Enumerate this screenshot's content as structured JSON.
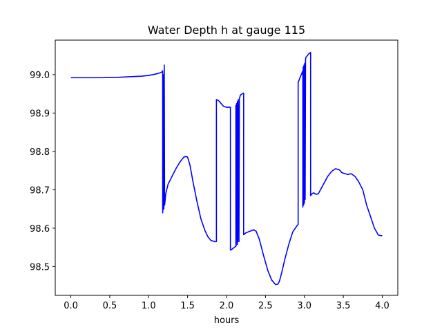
{
  "chart_data": {
    "type": "line",
    "title": "Water Depth h at gauge 115",
    "xlabel": "hours",
    "ylabel": "",
    "xlim": [
      -0.2,
      4.2
    ],
    "ylim": [
      98.425,
      99.09
    ],
    "xticks": [
      0.0,
      0.5,
      1.0,
      1.5,
      2.0,
      2.5,
      3.0,
      3.5,
      4.0
    ],
    "xtick_labels": [
      "0.0",
      "0.5",
      "1.0",
      "1.5",
      "2.0",
      "2.5",
      "3.0",
      "3.5",
      "4.0"
    ],
    "yticks": [
      98.5,
      98.6,
      98.7,
      98.8,
      98.9,
      99.0
    ],
    "ytick_labels": [
      "98.5",
      "98.6",
      "98.7",
      "98.8",
      "98.9",
      "99.0"
    ],
    "grid": false,
    "series": [
      {
        "color": "#0000ff",
        "x": [
          0.0,
          0.2,
          0.4,
          0.6,
          0.8,
          0.9,
          1.0,
          1.05,
          1.1,
          1.15,
          1.17,
          1.18,
          1.18,
          1.185,
          1.19,
          1.195,
          1.2,
          1.205,
          1.205,
          1.21,
          1.22,
          1.25,
          1.3,
          1.35,
          1.4,
          1.45,
          1.48,
          1.5,
          1.53,
          1.57,
          1.62,
          1.67,
          1.72,
          1.76,
          1.8,
          1.85,
          1.87,
          1.87,
          1.9,
          1.93,
          1.96,
          2.0,
          2.03,
          2.05,
          2.05,
          2.07,
          2.1,
          2.12,
          2.12,
          2.125,
          2.13,
          2.14,
          2.14,
          2.145,
          2.15,
          2.16,
          2.16,
          2.165,
          2.17,
          2.175,
          2.175,
          2.18,
          2.2,
          2.22,
          2.22,
          2.25,
          2.3,
          2.35,
          2.38,
          2.42,
          2.47,
          2.53,
          2.58,
          2.63,
          2.66,
          2.68,
          2.71,
          2.75,
          2.8,
          2.85,
          2.9,
          2.92,
          2.92,
          2.95,
          2.97,
          2.98,
          2.98,
          2.985,
          2.99,
          2.995,
          3.0,
          3.0,
          3.005,
          3.01,
          3.015,
          3.02,
          3.04,
          3.06,
          3.08,
          3.08,
          3.1,
          3.12,
          3.15,
          3.18,
          3.22,
          3.26,
          3.3,
          3.35,
          3.4,
          3.45,
          3.48,
          3.52,
          3.56,
          3.6,
          3.65,
          3.7,
          3.75,
          3.8,
          3.85,
          3.9,
          3.95,
          4.0
        ],
        "y": [
          98.992,
          98.992,
          98.992,
          98.993,
          98.995,
          98.996,
          98.998,
          99.0,
          99.002,
          99.005,
          99.007,
          99.01,
          98.64,
          98.66,
          99.0,
          98.65,
          99.025,
          98.66,
          98.66,
          98.67,
          98.69,
          98.715,
          98.735,
          98.755,
          98.772,
          98.785,
          98.787,
          98.785,
          98.765,
          98.72,
          98.67,
          98.625,
          98.595,
          98.578,
          98.568,
          98.565,
          98.565,
          98.935,
          98.932,
          98.925,
          98.918,
          98.915,
          98.915,
          98.915,
          98.543,
          98.545,
          98.55,
          98.553,
          98.92,
          98.555,
          98.925,
          98.558,
          98.93,
          98.565,
          98.935,
          98.565,
          98.565,
          98.938,
          98.94,
          98.945,
          98.945,
          98.947,
          98.95,
          98.952,
          98.583,
          98.588,
          98.592,
          98.596,
          98.592,
          98.572,
          98.533,
          98.49,
          98.465,
          98.453,
          98.454,
          98.462,
          98.485,
          98.52,
          98.558,
          98.59,
          98.605,
          98.61,
          98.98,
          98.995,
          99.005,
          99.01,
          98.655,
          99.02,
          98.66,
          99.025,
          98.665,
          98.67,
          99.03,
          98.675,
          99.04,
          99.045,
          99.05,
          99.055,
          99.058,
          98.685,
          98.69,
          98.692,
          98.688,
          98.69,
          98.705,
          98.72,
          98.735,
          98.748,
          98.755,
          98.752,
          98.745,
          98.742,
          98.74,
          98.742,
          98.735,
          98.72,
          98.7,
          98.66,
          98.63,
          98.6,
          98.582,
          98.58
        ]
      }
    ]
  }
}
